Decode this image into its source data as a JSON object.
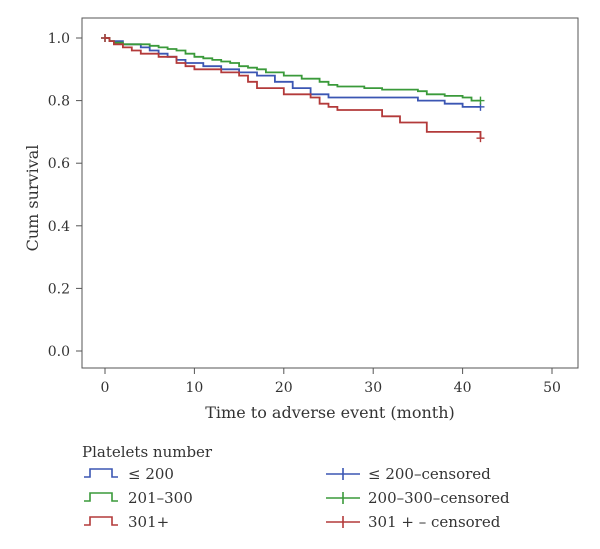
{
  "chart_data": {
    "type": "line",
    "subtype": "step",
    "xlabel": "Time to adverse event (month)",
    "ylabel": "Cum survival",
    "xlim": [
      0,
      52
    ],
    "ylim": [
      -0.05,
      1.05
    ],
    "xticks": [
      0,
      10,
      20,
      30,
      40,
      50
    ],
    "yticks": [
      0.0,
      0.2,
      0.4,
      0.6,
      0.8,
      1.0
    ],
    "legend_title": "Platelets number",
    "legend_position": "bottom",
    "series": [
      {
        "name": "≤ 200",
        "color": "#3b56b3",
        "points": [
          [
            0,
            1.0
          ],
          [
            0.5,
            0.99
          ],
          [
            2,
            0.98
          ],
          [
            4,
            0.97
          ],
          [
            5,
            0.96
          ],
          [
            6,
            0.95
          ],
          [
            7,
            0.94
          ],
          [
            8,
            0.93
          ],
          [
            9,
            0.92
          ],
          [
            11,
            0.91
          ],
          [
            13,
            0.9
          ],
          [
            15,
            0.89
          ],
          [
            17,
            0.88
          ],
          [
            19,
            0.86
          ],
          [
            21,
            0.84
          ],
          [
            23,
            0.82
          ],
          [
            25,
            0.81
          ],
          [
            35,
            0.8
          ],
          [
            38,
            0.79
          ],
          [
            40,
            0.78
          ],
          [
            42,
            0.78
          ]
        ],
        "censored": [
          [
            0,
            1.0
          ],
          [
            42,
            0.78
          ]
        ]
      },
      {
        "name": "201–300",
        "color": "#3a9a3a",
        "points": [
          [
            0,
            1.0
          ],
          [
            0.5,
            0.99
          ],
          [
            1,
            0.985
          ],
          [
            2,
            0.98
          ],
          [
            5,
            0.975
          ],
          [
            6,
            0.97
          ],
          [
            7,
            0.965
          ],
          [
            8,
            0.96
          ],
          [
            9,
            0.95
          ],
          [
            10,
            0.94
          ],
          [
            11,
            0.935
          ],
          [
            12,
            0.93
          ],
          [
            13,
            0.925
          ],
          [
            14,
            0.92
          ],
          [
            15,
            0.91
          ],
          [
            16,
            0.905
          ],
          [
            17,
            0.9
          ],
          [
            18,
            0.89
          ],
          [
            20,
            0.88
          ],
          [
            22,
            0.87
          ],
          [
            24,
            0.86
          ],
          [
            25,
            0.85
          ],
          [
            26,
            0.845
          ],
          [
            29,
            0.84
          ],
          [
            31,
            0.835
          ],
          [
            35,
            0.83
          ],
          [
            36,
            0.82
          ],
          [
            38,
            0.815
          ],
          [
            40,
            0.81
          ],
          [
            41,
            0.8
          ],
          [
            42,
            0.8
          ]
        ],
        "censored": [
          [
            0,
            1.0
          ],
          [
            42,
            0.8
          ]
        ]
      },
      {
        "name": "301+",
        "color": "#b33a3a",
        "points": [
          [
            0,
            1.0
          ],
          [
            0.5,
            0.99
          ],
          [
            1,
            0.98
          ],
          [
            2,
            0.97
          ],
          [
            3,
            0.96
          ],
          [
            4,
            0.95
          ],
          [
            6,
            0.94
          ],
          [
            8,
            0.92
          ],
          [
            9,
            0.91
          ],
          [
            10,
            0.9
          ],
          [
            13,
            0.89
          ],
          [
            15,
            0.88
          ],
          [
            16,
            0.86
          ],
          [
            17,
            0.84
          ],
          [
            20,
            0.82
          ],
          [
            23,
            0.81
          ],
          [
            24,
            0.79
          ],
          [
            25,
            0.78
          ],
          [
            26,
            0.77
          ],
          [
            31,
            0.75
          ],
          [
            33,
            0.73
          ],
          [
            36,
            0.7
          ],
          [
            42,
            0.7
          ],
          [
            42,
            0.68
          ]
        ],
        "censored": [
          [
            0,
            1.0
          ],
          [
            42,
            0.68
          ]
        ]
      }
    ],
    "legend": {
      "lines": [
        {
          "label": "≤ 200",
          "color": "#3b56b3"
        },
        {
          "label": "201–300",
          "color": "#3a9a3a"
        },
        {
          "label": "301+",
          "color": "#b33a3a"
        }
      ],
      "censored": [
        {
          "label": "≤ 200–censored",
          "color": "#3b56b3"
        },
        {
          "label": "200–300–censored",
          "color": "#3a9a3a"
        },
        {
          "label": "301 + – censored",
          "color": "#b33a3a"
        }
      ]
    }
  }
}
